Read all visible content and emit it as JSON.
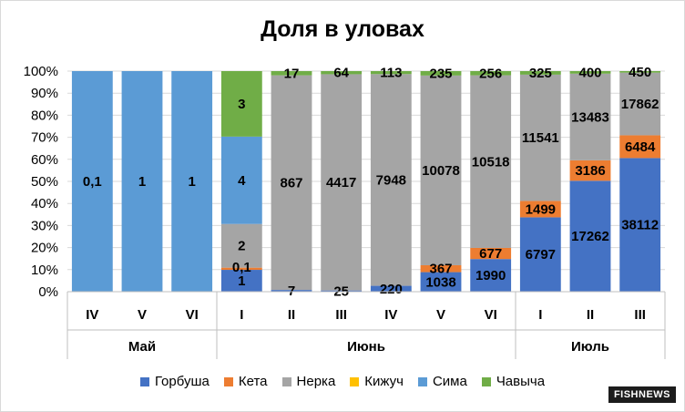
{
  "chart_data": {
    "type": "bar",
    "stacked": "percent",
    "title": "Доля в уловах",
    "yticks": [
      "0%",
      "10%",
      "20%",
      "30%",
      "40%",
      "50%",
      "60%",
      "70%",
      "80%",
      "90%",
      "100%"
    ],
    "categories": [
      "IV",
      "V",
      "VI",
      "I",
      "II",
      "III",
      "IV",
      "V",
      "VI",
      "I",
      "II",
      "III"
    ],
    "groups": [
      {
        "label": "Май",
        "count": 3
      },
      {
        "label": "Июнь",
        "count": 6
      },
      {
        "label": "Июль",
        "count": 3
      }
    ],
    "series": [
      {
        "name": "Горбуша",
        "color": "#4472c4",
        "values": [
          0,
          0,
          0,
          1,
          7,
          25,
          220,
          1038,
          1990,
          6797,
          17262,
          38112
        ],
        "labels": [
          "",
          "",
          "",
          "1",
          "7",
          "25",
          "220",
          "1038",
          "1990",
          "6797",
          "17262",
          "38112"
        ]
      },
      {
        "name": "Кета",
        "color": "#ed7d31",
        "values": [
          0,
          0,
          0,
          0.1,
          0,
          0,
          0,
          367,
          677,
          1499,
          3186,
          6484
        ],
        "labels": [
          "",
          "",
          "",
          "0,1",
          "",
          "",
          "",
          "367",
          "677",
          "1499",
          "3186",
          "6484"
        ]
      },
      {
        "name": "Нерка",
        "color": "#a5a5a5",
        "values": [
          0,
          0,
          0,
          2,
          867,
          4417,
          7948,
          10078,
          10518,
          11541,
          13483,
          17862
        ],
        "labels": [
          "",
          "",
          "",
          "2",
          "867",
          "4417",
          "7948",
          "10078",
          "10518",
          "11541",
          "13483",
          "17862"
        ]
      },
      {
        "name": "Кижуч",
        "color": "#ffc000",
        "values": [
          0,
          0,
          0,
          0,
          0,
          0,
          0,
          0,
          0,
          0,
          0,
          0
        ],
        "labels": [
          "",
          "",
          "",
          "",
          "",
          "",
          "",
          "",
          "",
          "",
          "",
          ""
        ]
      },
      {
        "name": "Сима",
        "color": "#5b9bd5",
        "values": [
          0.1,
          1,
          1,
          4,
          0,
          0,
          0,
          0,
          0,
          0,
          0,
          0
        ],
        "labels": [
          "0,1",
          "1",
          "1",
          "4",
          "",
          "",
          "",
          "",
          "",
          "",
          "",
          ""
        ]
      },
      {
        "name": "Чавыча",
        "color": "#70ad47",
        "values": [
          0,
          0,
          0,
          3,
          17,
          64,
          113,
          235,
          256,
          325,
          400,
          450
        ],
        "labels": [
          "",
          "",
          "",
          "3",
          "17",
          "64",
          "113",
          "235",
          "256",
          "325",
          "400",
          "450"
        ]
      }
    ],
    "ylim": [
      0,
      100
    ],
    "grid": true,
    "legend_position": "bottom"
  },
  "watermark": "FISHNEWS"
}
